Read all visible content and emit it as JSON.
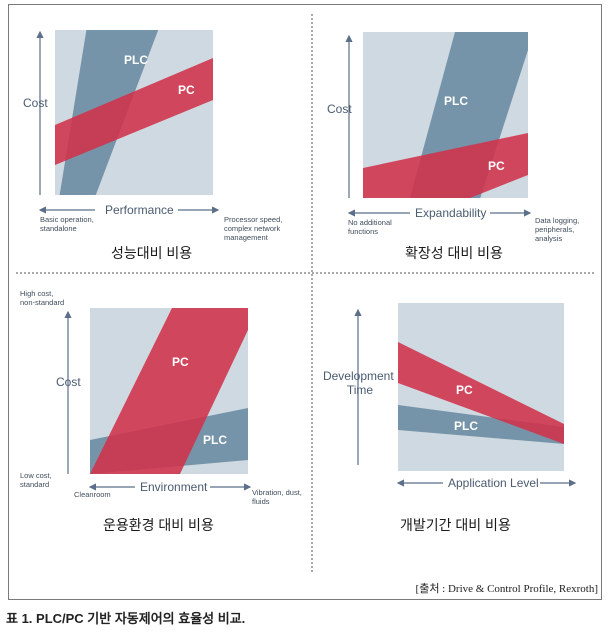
{
  "panels": [
    {
      "caption": "성능대비 비용",
      "y_axis_label": "Cost",
      "x_axis_label": "Performance",
      "x_left_note": "Basic operation, standalone",
      "x_right_note": "Processor speed, complex network management",
      "band_labels": [
        "PLC",
        "PC"
      ]
    },
    {
      "caption": "확장성 대비 비용",
      "y_axis_label": "Cost",
      "x_axis_label": "Expandability",
      "x_left_note": "No additional functions",
      "x_right_note": "Data logging, peripherals, analysis",
      "band_labels": [
        "PLC",
        "PC"
      ]
    },
    {
      "caption": "운용환경 대비 비용",
      "y_axis_label": "Cost",
      "x_axis_label": "Environment",
      "y_top_note": "High cost, non-standard",
      "y_bottom_note": "Low cost, standard",
      "x_left_note": "Cleanroom",
      "x_right_note": "Vibration, dust, fluids",
      "band_labels": [
        "PC",
        "PLC"
      ]
    },
    {
      "caption": "개발기간 대비 비용",
      "y_axis_label": "Development Time",
      "x_axis_label": "Application Level",
      "band_labels": [
        "PC",
        "PLC"
      ]
    }
  ],
  "source_note": "[출처 : Drive & Control Profile, Rexroth]",
  "table_caption": "표 1. PLC/PC 기반 자동제어의 효율성 비교.",
  "colors": {
    "plc_band": "#6f8ea4",
    "pc_band": "#d0324a",
    "background": "#cfd9e2",
    "axis": "#5b6f8a"
  }
}
